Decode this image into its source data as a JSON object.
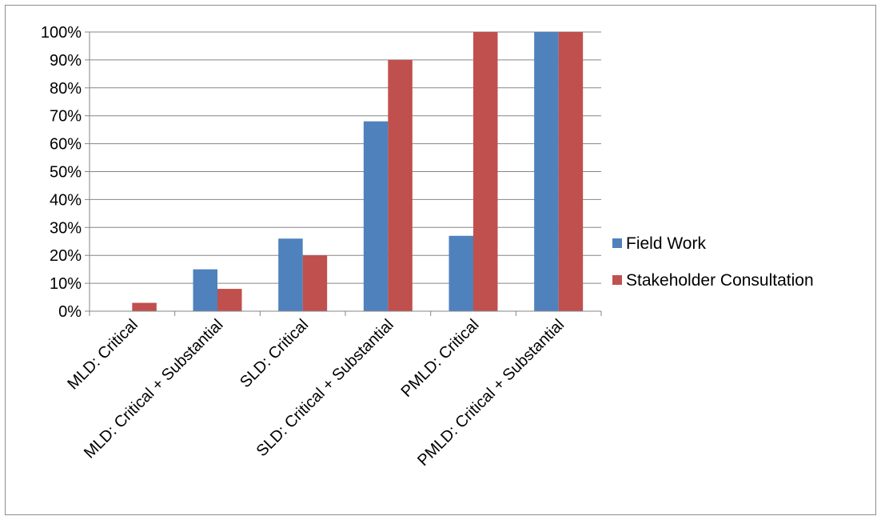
{
  "chart_data": {
    "type": "bar",
    "categories": [
      "MLD: Critical",
      "MLD: Critical + Substantial",
      "SLD: Critical",
      "SLD: Critical + Substantial",
      "PMLD: Critical",
      "PMLD: Critical + Substantial"
    ],
    "series": [
      {
        "name": "Field Work",
        "color": "#4f81bd",
        "values": [
          0,
          15,
          26,
          68,
          27,
          100
        ]
      },
      {
        "name": "Stakeholder Consultation",
        "color": "#c0504d",
        "values": [
          3,
          8,
          20,
          90,
          100,
          100
        ]
      }
    ],
    "yticks": [
      "0%",
      "10%",
      "20%",
      "30%",
      "40%",
      "50%",
      "60%",
      "70%",
      "80%",
      "90%",
      "100%"
    ],
    "ylim": [
      0,
      100
    ],
    "y_unit": "%",
    "grid": true,
    "legend_position": "right",
    "title": "",
    "xlabel": "",
    "ylabel": ""
  }
}
